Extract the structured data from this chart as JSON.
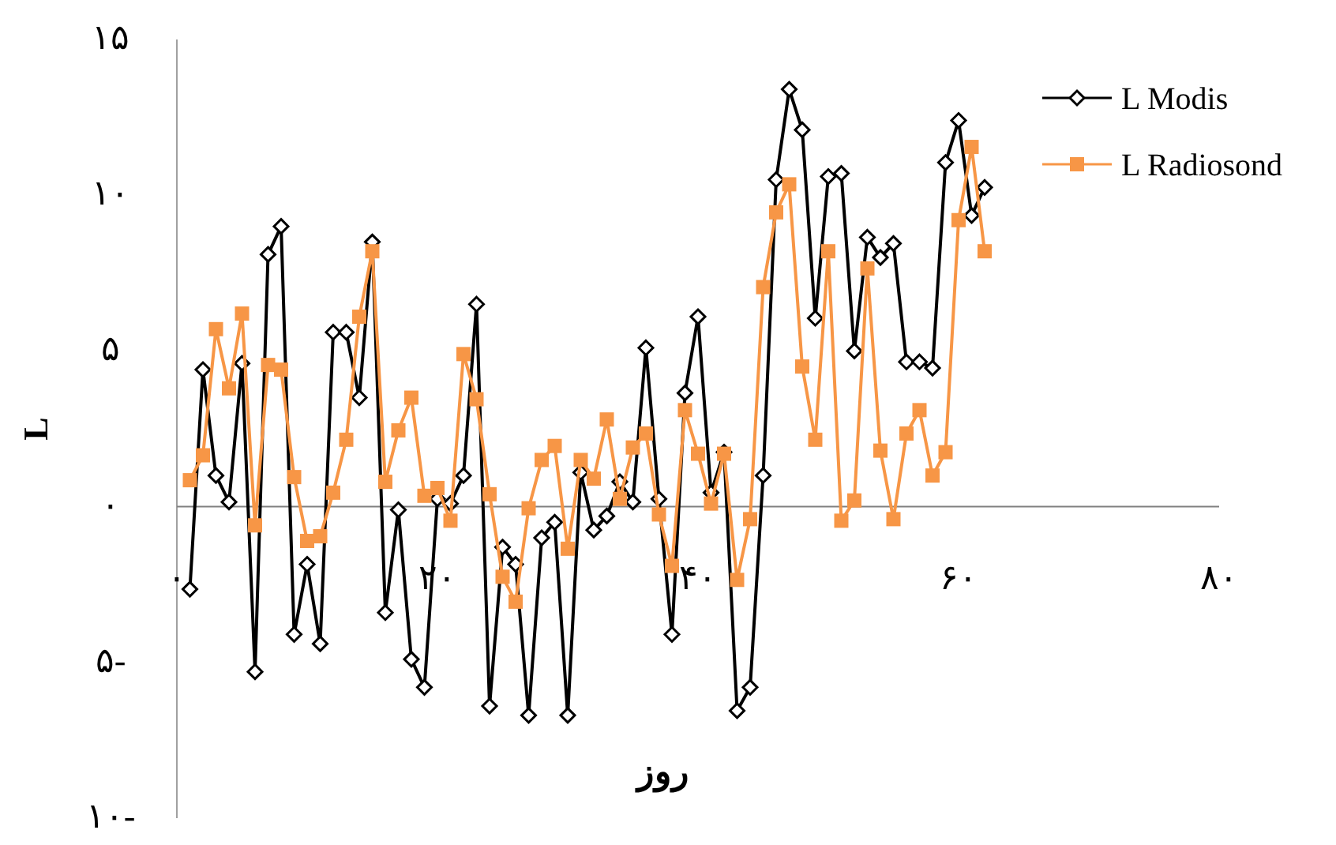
{
  "chart_data": {
    "type": "line",
    "xlabel": "روز",
    "ylabel": "L",
    "x": [
      1,
      2,
      3,
      4,
      5,
      6,
      7,
      8,
      9,
      10,
      11,
      12,
      13,
      14,
      15,
      16,
      17,
      18,
      19,
      20,
      21,
      22,
      23,
      24,
      25,
      26,
      27,
      28,
      29,
      30,
      31,
      32,
      33,
      34,
      35,
      36,
      37,
      38,
      39,
      40,
      41,
      42,
      43,
      44,
      45,
      46,
      47,
      48,
      49,
      50,
      51,
      52,
      53,
      54,
      55,
      56,
      57,
      58,
      59,
      60,
      61,
      62
    ],
    "series": [
      {
        "name": "L Modis",
        "color": "#000000",
        "marker": "diamond",
        "values": [
          -2.65,
          4.4,
          1.0,
          0.15,
          4.6,
          -5.3,
          8.1,
          9.0,
          -4.1,
          -1.85,
          -4.4,
          5.6,
          5.6,
          3.5,
          8.5,
          -3.4,
          -0.1,
          -4.9,
          -5.8,
          0.25,
          0.1,
          1.0,
          6.5,
          -6.4,
          -1.3,
          -1.85,
          -6.7,
          -1.0,
          -0.5,
          -6.7,
          1.1,
          -0.75,
          -0.3,
          0.8,
          0.15,
          5.1,
          0.25,
          -4.1,
          3.65,
          6.1,
          0.45,
          1.75,
          -6.55,
          -5.8,
          1.0,
          10.5,
          13.4,
          12.1,
          6.05,
          10.6,
          10.7,
          5.0,
          8.65,
          8.0,
          8.45,
          4.65,
          4.65,
          4.45,
          11.05,
          12.4,
          9.35,
          10.25
        ]
      },
      {
        "name": "L Radiosond",
        "color": "#f79646",
        "marker": "square",
        "values": [
          0.85,
          1.65,
          5.7,
          3.8,
          6.2,
          -0.6,
          4.55,
          4.4,
          0.95,
          -1.1,
          -0.95,
          0.45,
          2.15,
          6.1,
          8.2,
          0.8,
          2.45,
          3.5,
          0.35,
          0.6,
          -0.45,
          4.9,
          3.45,
          0.4,
          -2.25,
          -3.05,
          -0.05,
          1.5,
          1.95,
          -1.35,
          1.5,
          0.9,
          2.8,
          0.25,
          1.9,
          2.35,
          -0.25,
          -1.9,
          3.1,
          1.7,
          0.1,
          1.7,
          -2.35,
          -0.4,
          7.05,
          9.45,
          10.35,
          4.5,
          2.15,
          8.2,
          -0.45,
          0.2,
          7.65,
          1.8,
          -0.4,
          2.35,
          3.1,
          1.0,
          1.75,
          9.2,
          11.55,
          8.2
        ]
      }
    ],
    "xlim": [
      0,
      80
    ],
    "xticks": [
      {
        "value": 0,
        "label": "۰"
      },
      {
        "value": 20,
        "label": "۲۰"
      },
      {
        "value": 40,
        "label": "۴۰"
      },
      {
        "value": 60,
        "label": "۶۰"
      },
      {
        "value": 80,
        "label": "۸۰"
      }
    ],
    "ylim": [
      -10,
      15
    ],
    "yticks": [
      {
        "value": -10,
        "label": "۱۰-"
      },
      {
        "value": -5,
        "label": "۵-"
      },
      {
        "value": 0,
        "label": "۰"
      },
      {
        "value": 5,
        "label": "۵"
      },
      {
        "value": 10,
        "label": "۱۰"
      },
      {
        "value": 15,
        "label": "۱۵"
      }
    ],
    "grid": false,
    "legend": "top right"
  }
}
